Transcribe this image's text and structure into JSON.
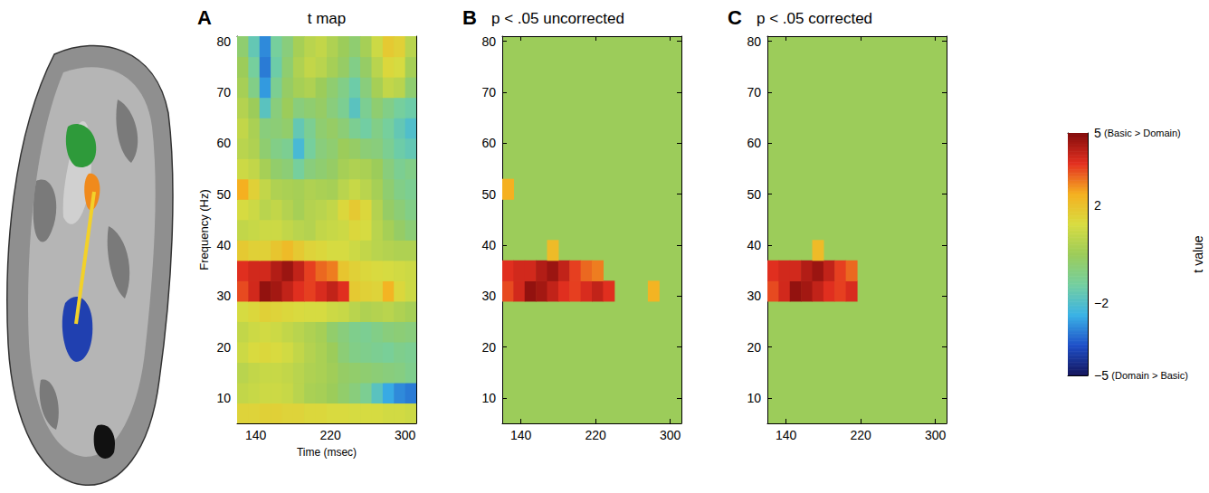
{
  "chart_data": [
    {
      "type": "heatmap",
      "panel": "A",
      "title": "t map",
      "xlabel": "Time (msec)",
      "ylabel": "Frequency (Hz)",
      "xlim": [
        120,
        312
      ],
      "xticks": [
        140,
        220,
        300
      ],
      "ylim": [
        5,
        81
      ],
      "yticks": [
        10,
        20,
        30,
        40,
        50,
        60,
        70,
        80
      ],
      "x": [
        126,
        138,
        150,
        162,
        174,
        186,
        198,
        210,
        222,
        234,
        246,
        258,
        270,
        282,
        294,
        306
      ],
      "y": [
        7,
        11,
        15,
        19,
        23,
        27,
        31,
        35,
        39,
        43,
        47,
        51,
        55,
        59,
        63,
        67,
        71,
        75,
        79
      ],
      "cells": [
        [
          1.5,
          1.5,
          1.6,
          1.6,
          1.5,
          1.5,
          1.4,
          1.4,
          1.3,
          1.3,
          1.2,
          1.2,
          1.2,
          1.1,
          1.1,
          1.0
        ],
        [
          0.8,
          0.9,
          1.0,
          1.0,
          0.9,
          0.6,
          0.3,
          0.2,
          0.0,
          -0.3,
          -0.6,
          -1.0,
          -1.8,
          -2.6,
          -3.0,
          -3.2
        ],
        [
          0.6,
          0.8,
          0.9,
          0.9,
          0.8,
          0.6,
          0.4,
          0.3,
          0.1,
          -0.2,
          -0.3,
          -0.4,
          -0.5,
          -0.6,
          -0.7,
          -0.9
        ],
        [
          1.0,
          1.3,
          1.4,
          1.3,
          1.1,
          0.8,
          0.5,
          0.3,
          0.0,
          -0.5,
          -0.8,
          -0.9,
          -1.0,
          -1.1,
          -0.9,
          -1.0
        ],
        [
          0.8,
          1.0,
          1.1,
          1.0,
          0.8,
          0.6,
          0.4,
          0.2,
          -0.3,
          -0.6,
          -0.9,
          -1.0,
          -0.8,
          -0.6,
          -0.5,
          -0.6
        ],
        [
          1.2,
          1.4,
          1.6,
          1.5,
          1.4,
          1.3,
          1.2,
          1.2,
          1.0,
          0.9,
          0.6,
          0.4,
          0.5,
          0.6,
          0.4,
          0.2
        ],
        [
          3.5,
          4.0,
          4.8,
          4.6,
          4.2,
          3.8,
          3.6,
          3.9,
          4.2,
          3.8,
          1.8,
          1.6,
          1.5,
          2.4,
          1.4,
          1.0
        ],
        [
          3.8,
          4.0,
          4.0,
          4.4,
          4.7,
          4.2,
          3.6,
          3.2,
          3.0,
          1.9,
          1.6,
          1.4,
          1.3,
          1.2,
          1.1,
          1.0
        ],
        [
          1.8,
          1.6,
          1.6,
          1.9,
          2.2,
          1.8,
          1.5,
          1.4,
          1.2,
          1.2,
          1.0,
          0.8,
          0.6,
          0.5,
          0.4,
          0.4
        ],
        [
          0.8,
          0.9,
          1.0,
          1.0,
          0.8,
          0.6,
          0.5,
          0.8,
          0.9,
          1.0,
          1.4,
          1.2,
          0.6,
          0.2,
          -0.2,
          -0.5
        ],
        [
          1.2,
          1.0,
          0.6,
          0.8,
          0.5,
          0.2,
          0.5,
          0.6,
          0.8,
          1.4,
          1.8,
          1.4,
          0.5,
          -0.2,
          -0.5,
          -0.8
        ],
        [
          2.5,
          1.6,
          0.8,
          0.4,
          0.3,
          0.2,
          0.4,
          0.3,
          0.2,
          0.6,
          0.9,
          0.6,
          0.2,
          -0.4,
          -0.8,
          -1.0
        ],
        [
          1.0,
          0.8,
          0.2,
          -0.3,
          -0.5,
          -1.2,
          -0.6,
          -0.4,
          -0.2,
          0.2,
          0.4,
          0.3,
          0.0,
          -0.6,
          -1.0,
          -0.8
        ],
        [
          0.6,
          0.4,
          -0.4,
          -0.8,
          -1.0,
          -2.2,
          -1.2,
          -0.6,
          -0.4,
          0.0,
          -0.2,
          -0.5,
          -0.6,
          -1.0,
          -1.4,
          -1.6
        ],
        [
          0.8,
          0.3,
          -0.6,
          -0.5,
          -0.3,
          -1.6,
          -1.0,
          -0.4,
          -0.2,
          -0.5,
          -1.0,
          -1.3,
          -0.8,
          -1.2,
          -1.6,
          -2.0
        ],
        [
          0.5,
          0.0,
          -1.8,
          -0.6,
          0.0,
          -0.6,
          -0.4,
          -0.2,
          -0.6,
          -1.0,
          -1.8,
          -1.0,
          -0.4,
          -0.8,
          -1.2,
          -1.4
        ],
        [
          0.2,
          -0.8,
          -2.8,
          -1.0,
          -0.2,
          0.2,
          0.4,
          0.0,
          -0.4,
          -0.8,
          -1.4,
          -0.6,
          0.2,
          0.8,
          0.6,
          -0.4
        ],
        [
          0.0,
          -1.2,
          -3.2,
          -1.4,
          -0.4,
          0.4,
          0.8,
          0.6,
          0.2,
          -0.2,
          -0.8,
          -0.2,
          0.6,
          1.4,
          1.2,
          0.2
        ],
        [
          -0.4,
          -1.6,
          -3.0,
          -1.2,
          -0.6,
          0.2,
          0.6,
          0.8,
          0.4,
          0.0,
          -0.4,
          0.2,
          1.0,
          1.8,
          1.6,
          0.6
        ]
      ]
    },
    {
      "type": "heatmap",
      "panel": "B",
      "title": "p < .05 uncorrected",
      "xlim": [
        120,
        312
      ],
      "xticks": [
        140,
        220,
        300
      ],
      "ylim": [
        5,
        81
      ],
      "yticks": [
        10,
        20,
        30,
        40,
        50,
        60,
        70,
        80
      ],
      "x": [
        126,
        138,
        150,
        162,
        174,
        186,
        198,
        210,
        222,
        234,
        246,
        258,
        270,
        282,
        294,
        306
      ],
      "y": [
        7,
        11,
        15,
        19,
        23,
        27,
        31,
        35,
        39,
        43,
        47,
        51,
        55,
        59,
        63,
        67,
        71,
        75,
        79
      ],
      "cells": [
        [
          null,
          null,
          null,
          null,
          null,
          null,
          null,
          null,
          null,
          null,
          null,
          null,
          null,
          null,
          null,
          null
        ],
        [
          null,
          null,
          null,
          null,
          null,
          null,
          null,
          null,
          null,
          null,
          null,
          null,
          null,
          null,
          null,
          null
        ],
        [
          null,
          null,
          null,
          null,
          null,
          null,
          null,
          null,
          null,
          null,
          null,
          null,
          null,
          null,
          null,
          null
        ],
        [
          null,
          null,
          null,
          null,
          null,
          null,
          null,
          null,
          null,
          null,
          null,
          null,
          null,
          null,
          null,
          null
        ],
        [
          null,
          null,
          null,
          null,
          null,
          null,
          null,
          null,
          null,
          null,
          null,
          null,
          null,
          null,
          null,
          null
        ],
        [
          null,
          null,
          null,
          null,
          null,
          null,
          null,
          null,
          null,
          null,
          null,
          null,
          null,
          null,
          null,
          null
        ],
        [
          3.5,
          4.0,
          4.8,
          4.6,
          4.2,
          3.8,
          3.6,
          3.9,
          4.2,
          3.8,
          null,
          null,
          null,
          2.4,
          null,
          null
        ],
        [
          3.8,
          4.0,
          4.0,
          4.4,
          4.7,
          4.2,
          3.6,
          3.2,
          3.0,
          null,
          null,
          null,
          null,
          null,
          null,
          null
        ],
        [
          null,
          null,
          null,
          null,
          2.2,
          null,
          null,
          null,
          null,
          null,
          null,
          null,
          null,
          null,
          null,
          null
        ],
        [
          null,
          null,
          null,
          null,
          null,
          null,
          null,
          null,
          null,
          null,
          null,
          null,
          null,
          null,
          null,
          null
        ],
        [
          null,
          null,
          null,
          null,
          null,
          null,
          null,
          null,
          null,
          null,
          null,
          null,
          null,
          null,
          null,
          null
        ],
        [
          2.5,
          null,
          null,
          null,
          null,
          null,
          null,
          null,
          null,
          null,
          null,
          null,
          null,
          null,
          null,
          null
        ],
        [
          null,
          null,
          null,
          null,
          null,
          null,
          null,
          null,
          null,
          null,
          null,
          null,
          null,
          null,
          null,
          null
        ],
        [
          null,
          null,
          null,
          null,
          null,
          null,
          null,
          null,
          null,
          null,
          null,
          null,
          null,
          null,
          null,
          null
        ],
        [
          null,
          null,
          null,
          null,
          null,
          null,
          null,
          null,
          null,
          null,
          null,
          null,
          null,
          null,
          null,
          null
        ],
        [
          null,
          null,
          null,
          null,
          null,
          null,
          null,
          null,
          null,
          null,
          null,
          null,
          null,
          null,
          null,
          null
        ],
        [
          null,
          null,
          null,
          null,
          null,
          null,
          null,
          null,
          null,
          null,
          null,
          null,
          null,
          null,
          null,
          null
        ],
        [
          null,
          null,
          null,
          null,
          null,
          null,
          null,
          null,
          null,
          null,
          null,
          null,
          null,
          null,
          null,
          null
        ],
        [
          null,
          null,
          null,
          null,
          null,
          null,
          null,
          null,
          null,
          null,
          null,
          null,
          null,
          null,
          null,
          null
        ]
      ]
    },
    {
      "type": "heatmap",
      "panel": "C",
      "title": "p < .05 corrected",
      "xlim": [
        120,
        312
      ],
      "xticks": [
        140,
        220,
        300
      ],
      "ylim": [
        5,
        81
      ],
      "yticks": [
        10,
        20,
        30,
        40,
        50,
        60,
        70,
        80
      ],
      "x": [
        126,
        138,
        150,
        162,
        174,
        186,
        198,
        210,
        222,
        234,
        246,
        258,
        270,
        282,
        294,
        306
      ],
      "y": [
        7,
        11,
        15,
        19,
        23,
        27,
        31,
        35,
        39,
        43,
        47,
        51,
        55,
        59,
        63,
        67,
        71,
        75,
        79
      ],
      "cells": [
        [
          null,
          null,
          null,
          null,
          null,
          null,
          null,
          null,
          null,
          null,
          null,
          null,
          null,
          null,
          null,
          null
        ],
        [
          null,
          null,
          null,
          null,
          null,
          null,
          null,
          null,
          null,
          null,
          null,
          null,
          null,
          null,
          null,
          null
        ],
        [
          null,
          null,
          null,
          null,
          null,
          null,
          null,
          null,
          null,
          null,
          null,
          null,
          null,
          null,
          null,
          null
        ],
        [
          null,
          null,
          null,
          null,
          null,
          null,
          null,
          null,
          null,
          null,
          null,
          null,
          null,
          null,
          null,
          null
        ],
        [
          null,
          null,
          null,
          null,
          null,
          null,
          null,
          null,
          null,
          null,
          null,
          null,
          null,
          null,
          null,
          null
        ],
        [
          null,
          null,
          null,
          null,
          null,
          null,
          null,
          null,
          null,
          null,
          null,
          null,
          null,
          null,
          null,
          null
        ],
        [
          3.5,
          4.0,
          4.8,
          4.6,
          4.2,
          3.8,
          3.6,
          3.9,
          null,
          null,
          null,
          null,
          null,
          null,
          null,
          null
        ],
        [
          3.8,
          4.0,
          4.0,
          4.4,
          4.7,
          4.2,
          3.6,
          3.2,
          null,
          null,
          null,
          null,
          null,
          null,
          null,
          null
        ],
        [
          null,
          null,
          null,
          null,
          2.2,
          null,
          null,
          null,
          null,
          null,
          null,
          null,
          null,
          null,
          null,
          null
        ],
        [
          null,
          null,
          null,
          null,
          null,
          null,
          null,
          null,
          null,
          null,
          null,
          null,
          null,
          null,
          null,
          null
        ],
        [
          null,
          null,
          null,
          null,
          null,
          null,
          null,
          null,
          null,
          null,
          null,
          null,
          null,
          null,
          null,
          null
        ],
        [
          null,
          null,
          null,
          null,
          null,
          null,
          null,
          null,
          null,
          null,
          null,
          null,
          null,
          null,
          null,
          null
        ],
        [
          null,
          null,
          null,
          null,
          null,
          null,
          null,
          null,
          null,
          null,
          null,
          null,
          null,
          null,
          null,
          null
        ],
        [
          null,
          null,
          null,
          null,
          null,
          null,
          null,
          null,
          null,
          null,
          null,
          null,
          null,
          null,
          null,
          null
        ],
        [
          null,
          null,
          null,
          null,
          null,
          null,
          null,
          null,
          null,
          null,
          null,
          null,
          null,
          null,
          null,
          null
        ],
        [
          null,
          null,
          null,
          null,
          null,
          null,
          null,
          null,
          null,
          null,
          null,
          null,
          null,
          null,
          null,
          null
        ],
        [
          null,
          null,
          null,
          null,
          null,
          null,
          null,
          null,
          null,
          null,
          null,
          null,
          null,
          null,
          null,
          null
        ],
        [
          null,
          null,
          null,
          null,
          null,
          null,
          null,
          null,
          null,
          null,
          null,
          null,
          null,
          null,
          null,
          null
        ],
        [
          null,
          null,
          null,
          null,
          null,
          null,
          null,
          null,
          null,
          null,
          null,
          null,
          null,
          null,
          null,
          null
        ]
      ]
    }
  ],
  "colorbar": {
    "title": "t value",
    "range": [
      -5,
      5
    ],
    "ticks": [
      5,
      2,
      {
        "value": -2,
        "label": "−2"
      },
      {
        "value": -5,
        "label": "−5"
      }
    ],
    "annotations": [
      {
        "value": 5,
        "text": "(Basic > Domain)"
      },
      {
        "value": -5,
        "text": "(Domain > Basic)"
      }
    ]
  }
}
